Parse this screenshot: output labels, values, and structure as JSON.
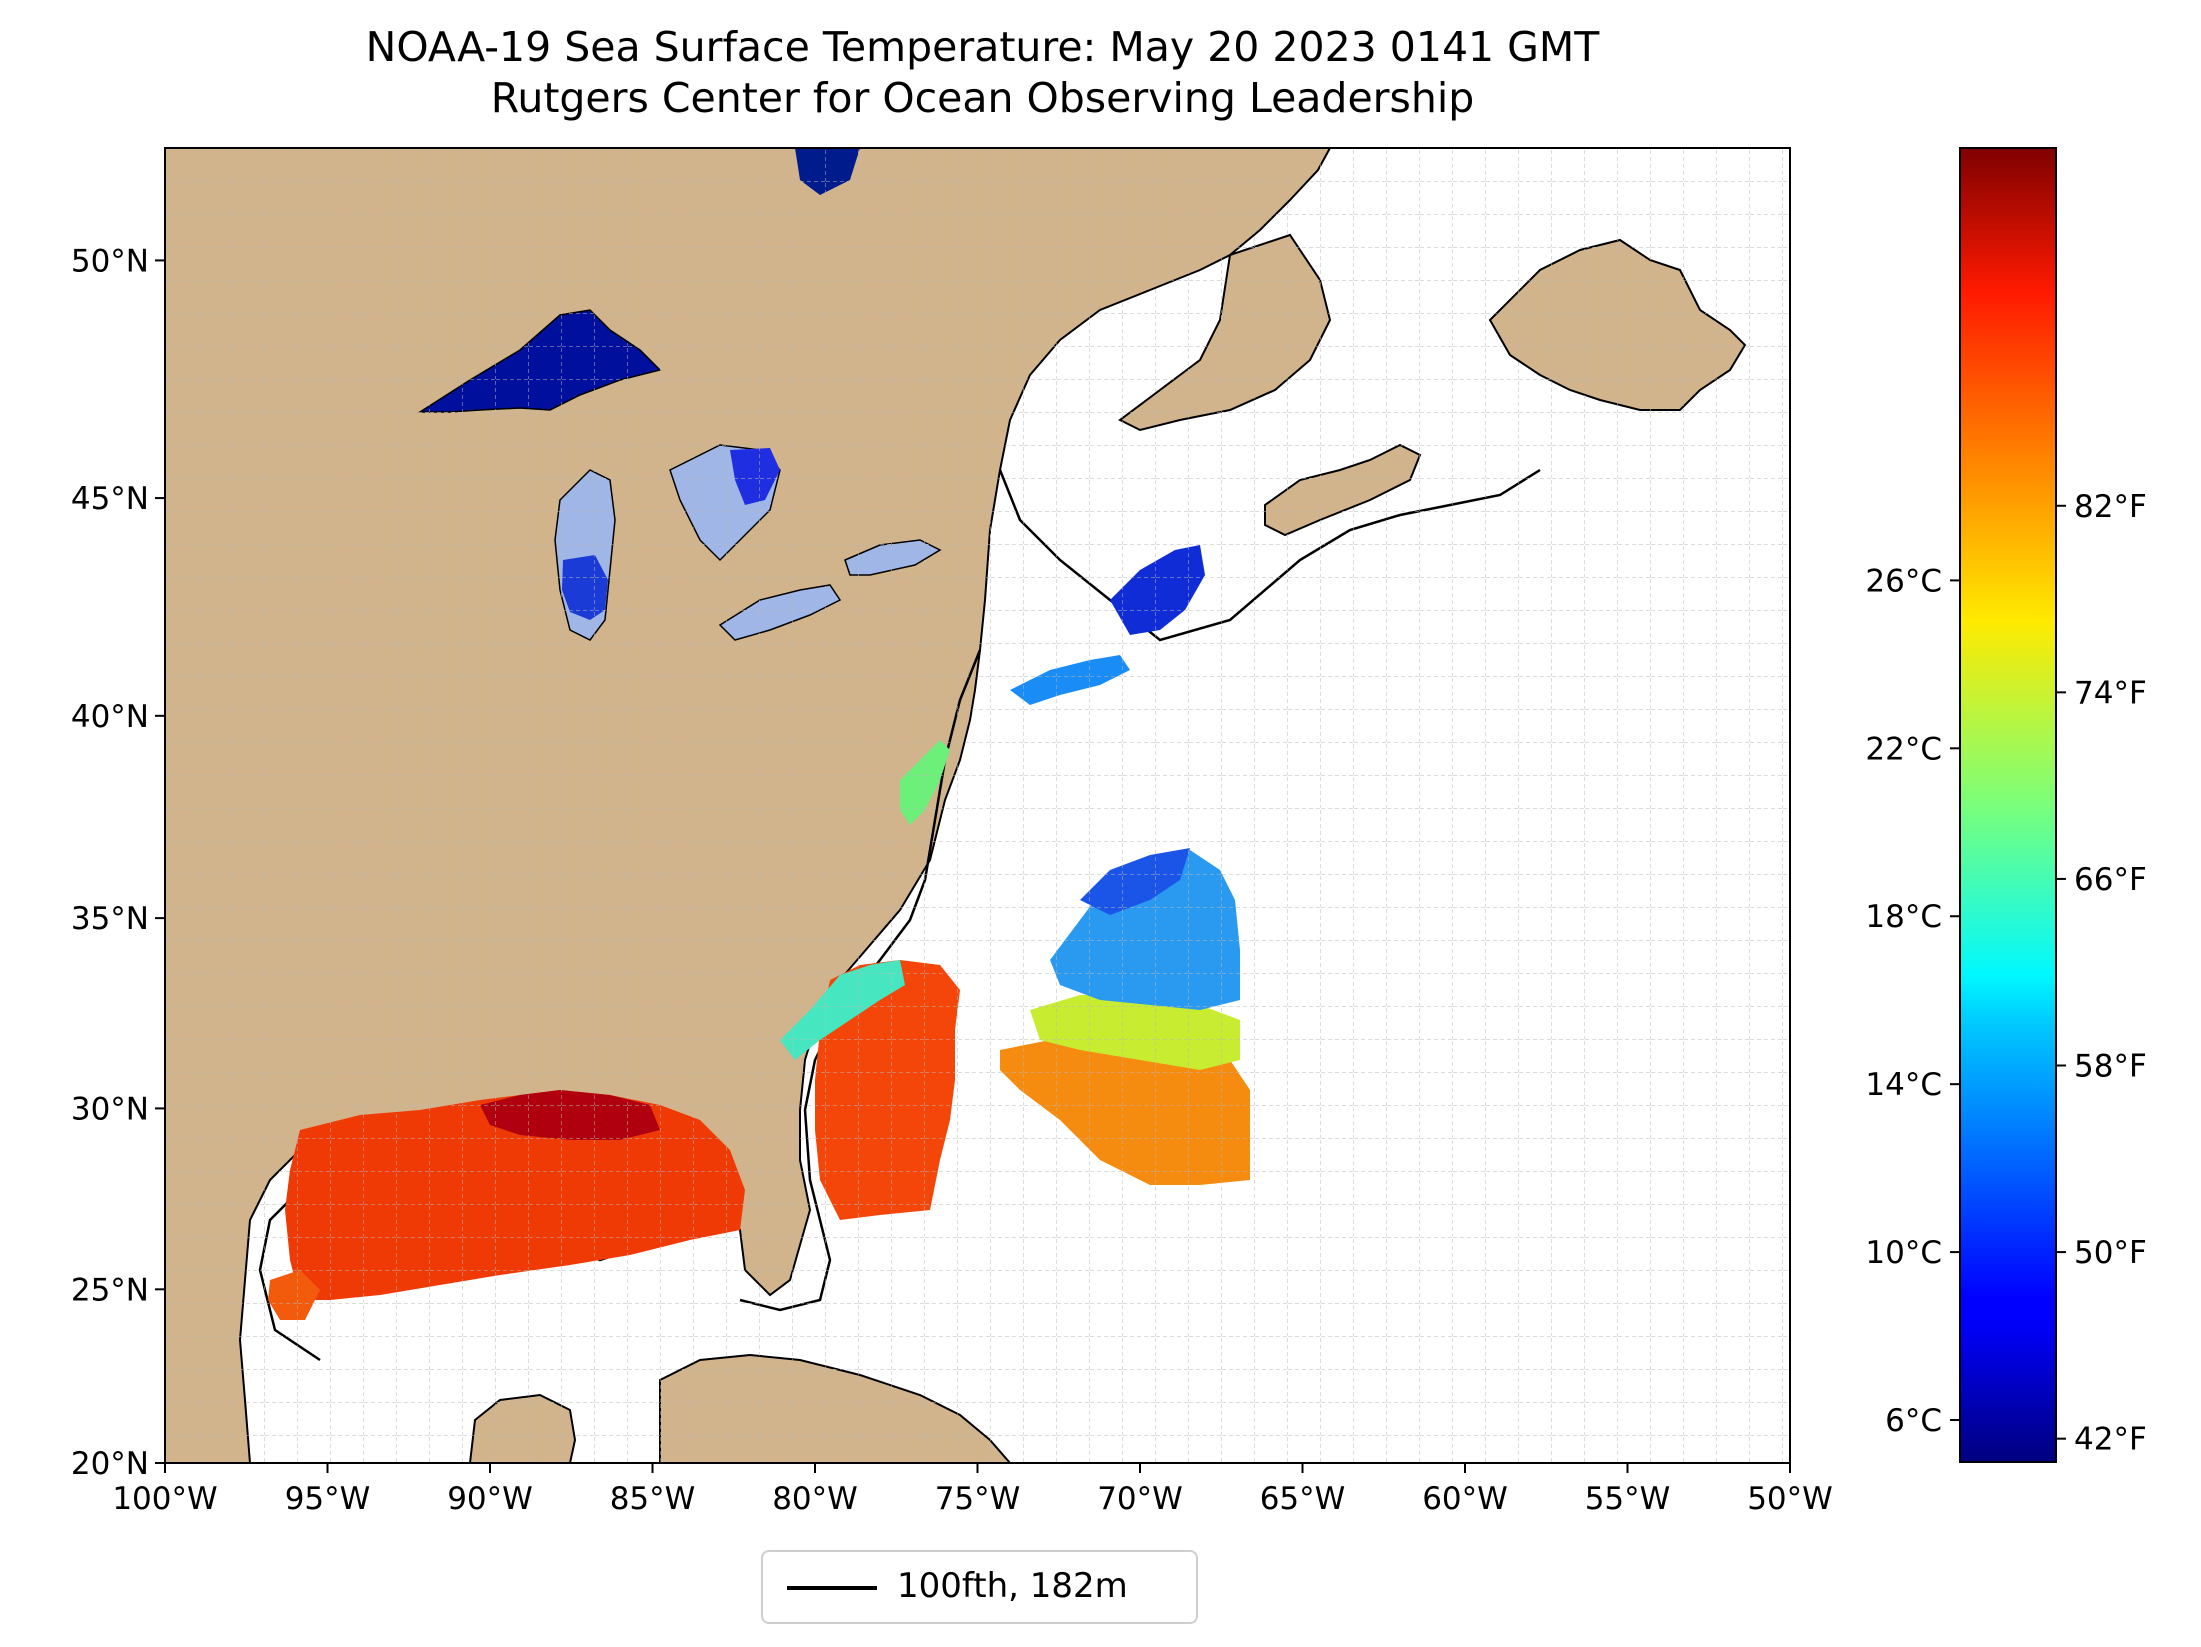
{
  "title": {
    "line1": "NOAA-19 Sea Surface Temperature: May 20 2023 0141 GMT",
    "line2": "Rutgers Center for Ocean Observing Leadership"
  },
  "map": {
    "lon_range": [
      -100,
      -50
    ],
    "lat_range": [
      20,
      52.2
    ],
    "lat_ticks": [
      "20°N",
      "25°N",
      "30°N",
      "35°N",
      "40°N",
      "45°N",
      "50°N"
    ],
    "lon_ticks": [
      "100°W",
      "95°W",
      "90°W",
      "85°W",
      "80°W",
      "75°W",
      "70°W",
      "65°W",
      "60°W",
      "55°W",
      "50°W"
    ],
    "grid": true,
    "land_color": "#d2b48c",
    "lake_color": "#9fb6e6",
    "ocean_color": "#ffffff"
  },
  "colorbar": {
    "colormap": "jet",
    "range_c": [
      5,
      36.3
    ],
    "celsius_ticks": [
      "6°C",
      "10°C",
      "14°C",
      "18°C",
      "22°C",
      "26°C"
    ],
    "fahrenheit_ticks": [
      "42°F",
      "50°F",
      "58°F",
      "66°F",
      "74°F",
      "82°F"
    ]
  },
  "legend": {
    "label": "100fth, 182m",
    "line_color": "#000000"
  }
}
